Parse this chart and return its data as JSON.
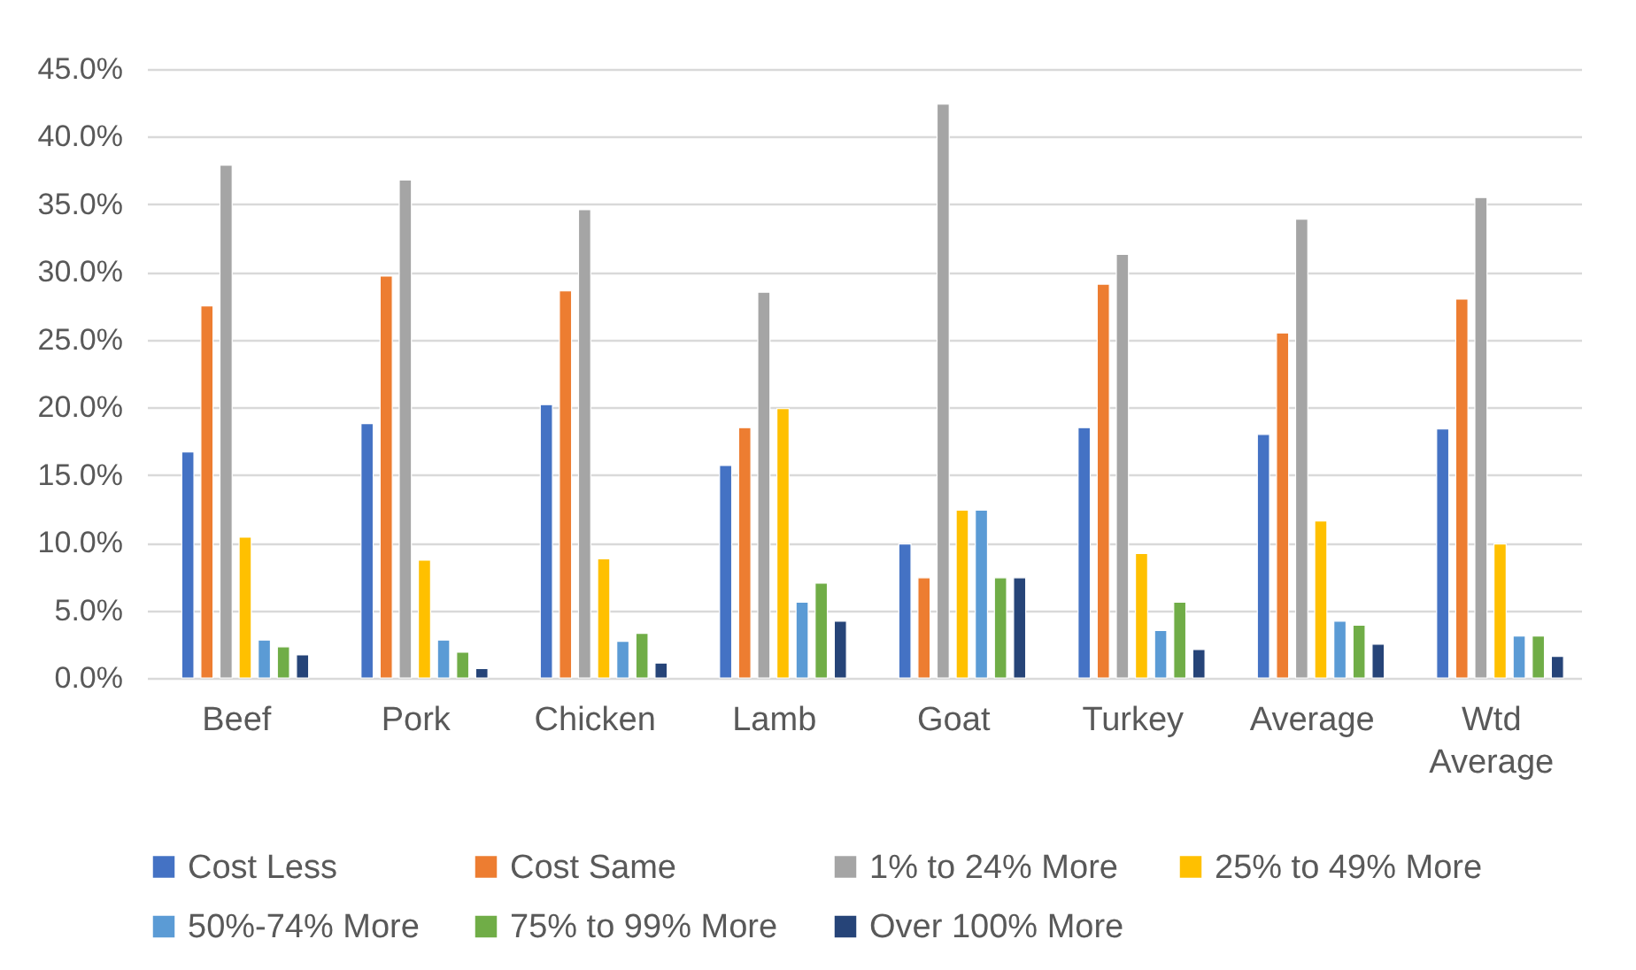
{
  "chart_data": {
    "type": "bar",
    "categories": [
      "Beef",
      "Pork",
      "Chicken",
      "Lamb",
      "Goat",
      "Turkey",
      "Average",
      "Wtd Average"
    ],
    "series": [
      {
        "name": "Cost Less",
        "color": "#4472c4",
        "values": [
          16.7,
          18.8,
          20.2,
          15.7,
          9.9,
          18.5,
          18.0,
          18.4
        ]
      },
      {
        "name": "Cost Same",
        "color": "#ed7d31",
        "values": [
          27.5,
          29.7,
          28.6,
          18.5,
          7.4,
          29.1,
          25.5,
          28.0
        ]
      },
      {
        "name": "1% to 24% More",
        "color": "#a5a5a5",
        "values": [
          37.9,
          36.8,
          34.6,
          28.5,
          42.4,
          31.3,
          33.9,
          35.5
        ]
      },
      {
        "name": "25% to 49% More",
        "color": "#ffc000",
        "values": [
          10.4,
          8.7,
          8.8,
          19.9,
          12.4,
          9.2,
          11.6,
          9.9
        ]
      },
      {
        "name": "50%-74% More",
        "color": "#5b9bd5",
        "values": [
          2.8,
          2.8,
          2.7,
          5.6,
          12.4,
          3.5,
          4.2,
          3.1
        ]
      },
      {
        "name": "75% to 99% More",
        "color": "#70ad47",
        "values": [
          2.3,
          1.9,
          3.3,
          7.0,
          7.4,
          5.6,
          3.9,
          3.1
        ]
      },
      {
        "name": "Over 100% More",
        "color": "#264478",
        "values": [
          1.7,
          0.7,
          1.1,
          4.2,
          7.4,
          2.1,
          2.5,
          1.6
        ]
      }
    ],
    "ylim": [
      0,
      45
    ],
    "yticks": [
      {
        "value": 0,
        "label": "0.0%"
      },
      {
        "value": 5,
        "label": "5.0%"
      },
      {
        "value": 10,
        "label": "10.0%"
      },
      {
        "value": 15,
        "label": "15.0%"
      },
      {
        "value": 20,
        "label": "20.0%"
      },
      {
        "value": 25,
        "label": "25.0%"
      },
      {
        "value": 30,
        "label": "30.0%"
      },
      {
        "value": 35,
        "label": "35.0%"
      },
      {
        "value": 40,
        "label": "40.0%"
      },
      {
        "value": 45,
        "label": "45.0%"
      }
    ],
    "grid": "y",
    "legend": "bottom"
  }
}
